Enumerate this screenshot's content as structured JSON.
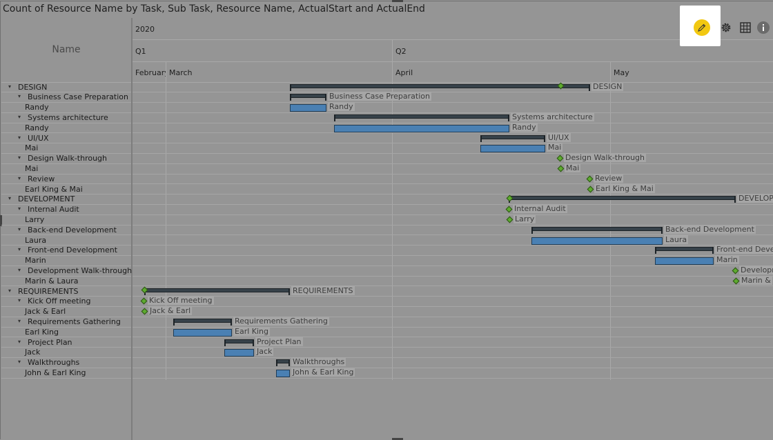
{
  "visual": {
    "title": "Count of Resource Name by Task, Sub Task, Resource Name, ActualStart and ActualEnd"
  },
  "header": {
    "name_column": "Name",
    "year": "2020",
    "quarters": [
      "Q1",
      "Q2"
    ],
    "months": [
      "February",
      "March",
      "April",
      "May"
    ]
  },
  "toolbar": {
    "edit_icon": "pencil-icon",
    "settings_icon": "gear-icon",
    "table_icon": "grid-icon",
    "info_icon": "info-icon",
    "edit_color": "#f2c811"
  },
  "rows": [
    {
      "label": "DESIGN",
      "level": 0,
      "expanded": true,
      "bar_label": "DESIGN"
    },
    {
      "label": "Business Case Preparation",
      "level": 1,
      "expanded": true,
      "bar_label": "Business Case Preparation"
    },
    {
      "label": "Randy",
      "level": 2,
      "bar_label": "Randy"
    },
    {
      "label": "Systems architecture",
      "level": 1,
      "expanded": true,
      "bar_label": "Systems architecture"
    },
    {
      "label": "Randy",
      "level": 2,
      "bar_label": "Randy"
    },
    {
      "label": "UI/UX",
      "level": 1,
      "expanded": true,
      "bar_label": "UI/UX"
    },
    {
      "label": "Mai",
      "level": 2,
      "bar_label": "Mai"
    },
    {
      "label": "Design Walk-through",
      "level": 1,
      "expanded": true,
      "bar_label": "Design Walk-through"
    },
    {
      "label": "Mai",
      "level": 2,
      "bar_label": "Mai"
    },
    {
      "label": "Review",
      "level": 1,
      "expanded": true,
      "bar_label": "Review"
    },
    {
      "label": "Earl King & Mai",
      "level": 2,
      "bar_label": "Earl King & Mai"
    },
    {
      "label": "DEVELOPMENT",
      "level": 0,
      "expanded": true,
      "bar_label": "DEVELOPMENT"
    },
    {
      "label": "Internal Audit",
      "level": 1,
      "expanded": true,
      "bar_label": "Internal Audit"
    },
    {
      "label": "Larry",
      "level": 2,
      "bar_label": "Larry"
    },
    {
      "label": "Back-end Development",
      "level": 1,
      "expanded": true,
      "bar_label": "Back-end Development"
    },
    {
      "label": "Laura",
      "level": 2,
      "bar_label": "Laura"
    },
    {
      "label": "Front-end Development",
      "level": 1,
      "expanded": true,
      "bar_label": "Front-end Develo"
    },
    {
      "label": "Marin",
      "level": 2,
      "bar_label": "Marin"
    },
    {
      "label": "Development Walk-through",
      "level": 1,
      "expanded": true,
      "bar_label": "Developm"
    },
    {
      "label": "Marin & Laura",
      "level": 2,
      "bar_label": "Marin &"
    },
    {
      "label": "REQUIREMENTS",
      "level": 0,
      "expanded": true,
      "bar_label": "REQUIREMENTS"
    },
    {
      "label": "Kick Off meeting",
      "level": 1,
      "expanded": true,
      "bar_label": "Kick Off meeting"
    },
    {
      "label": "Jack & Earl",
      "level": 2,
      "bar_label": "Jack & Earl"
    },
    {
      "label": "Requirements Gathering",
      "level": 1,
      "expanded": true,
      "bar_label": "Requirements Gathering"
    },
    {
      "label": "Earl King",
      "level": 2,
      "bar_label": "Earl King"
    },
    {
      "label": "Project Plan",
      "level": 1,
      "expanded": true,
      "bar_label": "Project Plan"
    },
    {
      "label": "Jack",
      "level": 2,
      "bar_label": "Jack"
    },
    {
      "label": "Walkthroughs",
      "level": 1,
      "expanded": true,
      "bar_label": "Walkthroughs"
    },
    {
      "label": "John & Earl King",
      "level": 2,
      "bar_label": "John & Earl King"
    }
  ]
}
